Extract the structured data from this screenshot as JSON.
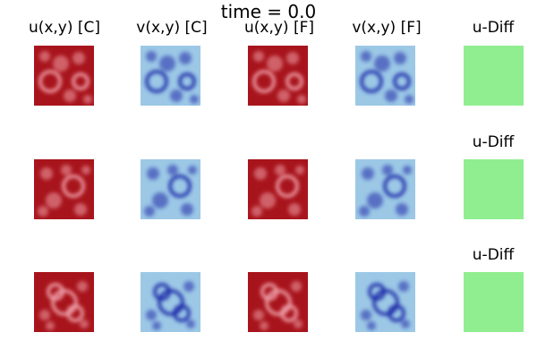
{
  "figure": {
    "title": "time = 0.0",
    "column_titles": [
      "u(x,y) [C]",
      "v(x,y) [C]",
      "u(x,y) [F]",
      "v(x,y) [F]",
      "u-Diff"
    ],
    "row_diff_titles": [
      "u-Diff",
      "u-Diff",
      "u-Diff"
    ]
  },
  "colors": {
    "u_base": "#a8141c",
    "u_light": "#f0a0a8",
    "v_base": "#9cc8e6",
    "v_dark": "#1c2ca8",
    "diff": "#90ee90"
  },
  "panels": {
    "rows": 3,
    "fields": [
      "u",
      "v",
      "u",
      "v",
      "diff"
    ]
  }
}
